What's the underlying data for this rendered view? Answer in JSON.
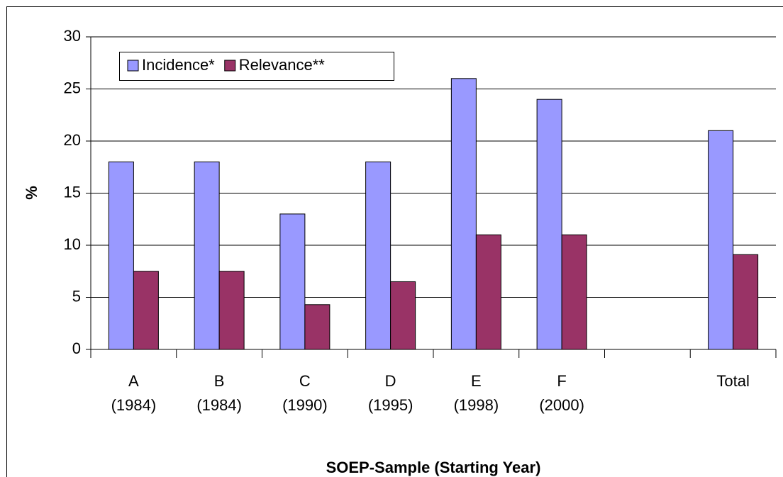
{
  "chart_data": {
    "type": "bar",
    "y_label": "%",
    "x_label": "SOEP-Sample (Starting Year)",
    "categories": [
      "A\n(1984)",
      "B\n(1984)",
      "C\n(1990)",
      "D\n(1995)",
      "E\n(1998)",
      "F\n(2000)",
      null,
      "Total"
    ],
    "series": [
      {
        "name": "Incidence*",
        "color": "#9999ff",
        "values": [
          18,
          18,
          13,
          18,
          26,
          24,
          null,
          21
        ]
      },
      {
        "name": "Relevance**",
        "color": "#993366",
        "values": [
          7.5,
          7.5,
          4.3,
          6.5,
          11,
          11,
          null,
          9.1
        ]
      }
    ],
    "ylim": [
      0,
      30
    ],
    "yticks": [
      0,
      5,
      10,
      15,
      20,
      25,
      30
    ],
    "grid": true,
    "legend": "top-left"
  }
}
